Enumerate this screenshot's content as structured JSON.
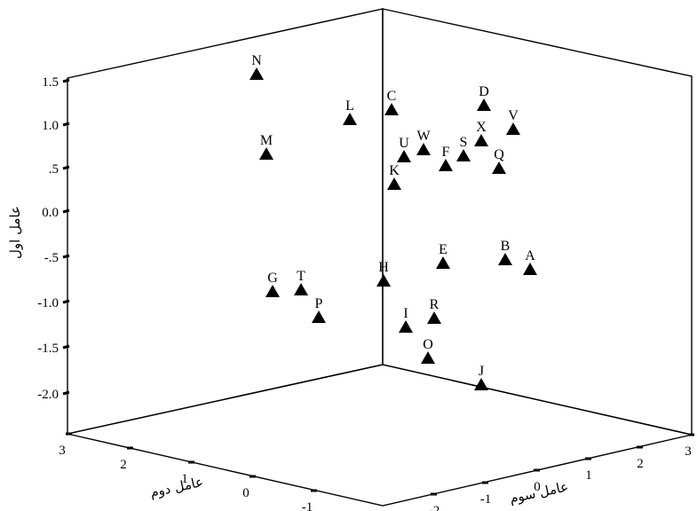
{
  "chart_data": {
    "type": "scatter",
    "title": "",
    "axes": {
      "z": {
        "label": "عامل اول",
        "ticks": [
          "1.5",
          "1.0",
          ".5",
          "0.0",
          "-.5",
          "-1.0",
          "-1.5",
          "-2.0"
        ]
      },
      "x": {
        "label": "عامل دوم",
        "ticks": [
          "3",
          "2",
          "1",
          "0",
          "-1"
        ]
      },
      "y": {
        "label": "عامل سوم",
        "ticks": [
          "-2",
          "-1",
          "0",
          "1",
          "2",
          "3"
        ]
      }
    },
    "points": [
      {
        "label": "N",
        "z": 1.6
      },
      {
        "label": "L",
        "z": 1.0
      },
      {
        "label": "C",
        "z": 1.1
      },
      {
        "label": "D",
        "z": 1.2
      },
      {
        "label": "V",
        "z": 1.0
      },
      {
        "label": "M",
        "z": 0.6
      },
      {
        "label": "U",
        "z": 0.6
      },
      {
        "label": "W",
        "z": 0.7
      },
      {
        "label": "S",
        "z": 0.6
      },
      {
        "label": "X",
        "z": 0.8
      },
      {
        "label": "F",
        "z": 0.5
      },
      {
        "label": "Q",
        "z": 0.5
      },
      {
        "label": "K",
        "z": 0.3
      },
      {
        "label": "E",
        "z": -0.5
      },
      {
        "label": "B",
        "z": -0.5
      },
      {
        "label": "A",
        "z": -0.6
      },
      {
        "label": "H",
        "z": -0.7
      },
      {
        "label": "G",
        "z": -0.9
      },
      {
        "label": "T",
        "z": -0.9
      },
      {
        "label": "P",
        "z": -1.2
      },
      {
        "label": "R",
        "z": -1.2
      },
      {
        "label": "I",
        "z": -1.3
      },
      {
        "label": "O",
        "z": -1.6
      },
      {
        "label": "J",
        "z": -1.9
      }
    ]
  }
}
